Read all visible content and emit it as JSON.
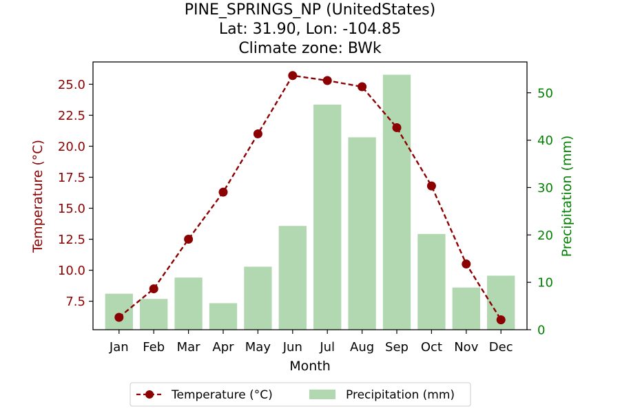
{
  "chart_data": {
    "type": "bar+line",
    "title_lines": [
      "PINE_SPRINGS_NP (UnitedStates)",
      "Lat: 31.90, Lon: -104.85",
      "Climate zone: BWk"
    ],
    "xlabel": "Month",
    "ylabel_left": "Temperature (°C)",
    "ylabel_right": "Precipitation (mm)",
    "categories": [
      "Jan",
      "Feb",
      "Mar",
      "Apr",
      "May",
      "Jun",
      "Jul",
      "Aug",
      "Sep",
      "Oct",
      "Nov",
      "Dec"
    ],
    "series": [
      {
        "name": "Temperature (°C)",
        "kind": "line",
        "axis": "left",
        "values": [
          6.2,
          8.5,
          12.5,
          16.3,
          21.0,
          25.7,
          25.3,
          24.8,
          21.5,
          16.8,
          10.5,
          6.0
        ]
      },
      {
        "name": "Precipitation (mm)",
        "kind": "bar",
        "axis": "right",
        "values": [
          7.6,
          6.5,
          11.0,
          5.6,
          13.3,
          21.9,
          47.5,
          40.6,
          53.8,
          20.2,
          8.9,
          11.4
        ]
      }
    ],
    "ylim_left": [
      5.2,
      26.8
    ],
    "yticks_left": [
      "7.5",
      "10.0",
      "12.5",
      "15.0",
      "17.5",
      "20.0",
      "22.5",
      "25.0"
    ],
    "ylim_right": [
      0,
      56.5
    ],
    "yticks_right": [
      "0",
      "10",
      "20",
      "30",
      "40",
      "50"
    ],
    "grid": false,
    "legend_position": "bottom-center",
    "colors": {
      "temperature_line": "#8b0000",
      "temperature_marker": "#8b0000",
      "precipitation_bar": "#b2d8b2",
      "left_axis_text": "#8b0000",
      "right_axis_text": "#008000"
    }
  }
}
